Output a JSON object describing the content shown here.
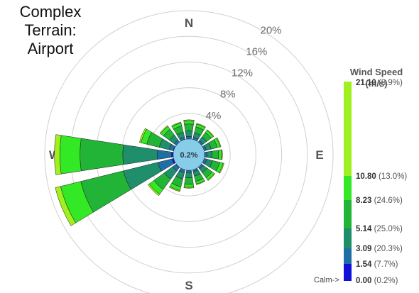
{
  "title_lines": [
    "Complex",
    "Terrain:",
    "Airport"
  ],
  "colors": {
    "ring": "#d0d0d0",
    "bins": [
      "#1010d8",
      "#1e6fa6",
      "#1f8e6a",
      "#22b437",
      "#33e825",
      "#9ff01e"
    ],
    "calm_fill": "#87cde8"
  },
  "chart_data": {
    "type": "windrose",
    "title": "Complex Terrain: Airport",
    "compass_labels": {
      "north": "N",
      "east": "E",
      "south": "S",
      "west": "W"
    },
    "ring_labels": [
      "4%",
      "8%",
      "12%",
      "16%",
      "20%"
    ],
    "ring_values": [
      4,
      8,
      12,
      16,
      20
    ],
    "calm_label": "0.2%",
    "calm_percent": 0.2,
    "directions": [
      "N",
      "NNE",
      "NE",
      "ENE",
      "E",
      "ESE",
      "SE",
      "SSE",
      "S",
      "SSW",
      "SW",
      "WSW",
      "W",
      "WNW",
      "NW",
      "NNW"
    ],
    "sector_totals_percent": [
      3.0,
      2.6,
      2.4,
      2.7,
      2.8,
      3.2,
      2.6,
      2.4,
      2.8,
      3.5,
      5.5,
      19.0,
      18.5,
      5.5,
      3.2,
      2.8
    ],
    "legend": {
      "title_lines": [
        "Wind Speed",
        "(m/s)"
      ],
      "calm_label": "Calm->",
      "bins": [
        {
          "value": "21.10",
          "percent": "(8.9%)"
        },
        {
          "value": "10.80",
          "percent": "(13.0%)"
        },
        {
          "value": "8.23",
          "percent": "(24.6%)"
        },
        {
          "value": "5.14",
          "percent": "(25.0%)"
        },
        {
          "value": "3.09",
          "percent": "(20.3%)"
        },
        {
          "value": "1.54",
          "percent": "(7.7%)"
        },
        {
          "value": "0.00",
          "percent": "(0.2%)"
        }
      ]
    }
  }
}
